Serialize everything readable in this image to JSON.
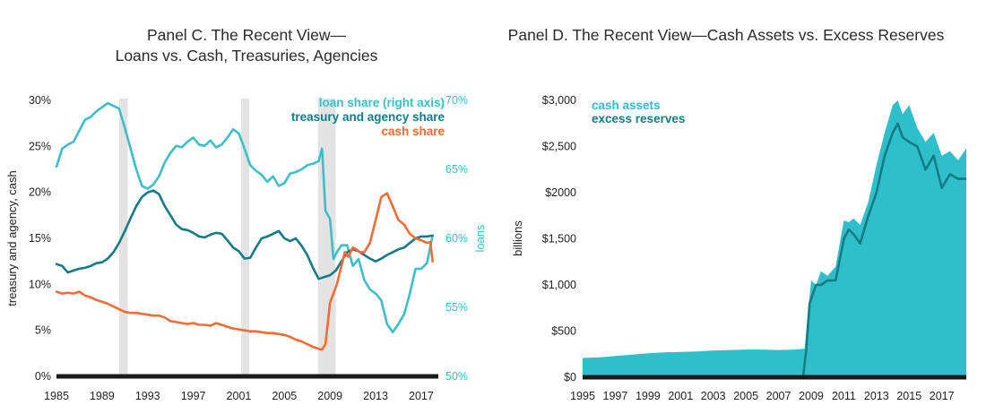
{
  "colors": {
    "loan": "#3dbfca",
    "treasury": "#137c86",
    "cash": "#f26c35",
    "cash_assets": "#2fbfcb",
    "excess_reserves": "#137c86",
    "recession": "#e3e3e3",
    "baseline": "#1a1a1a"
  },
  "chart_data": [
    {
      "type": "line",
      "title_lines": [
        "Panel C. The Recent View—",
        "Loans vs. Cash, Treasuries, Agencies"
      ],
      "ylabel_left": "treasury and agency, cash",
      "ylabel_right": "loans",
      "x_ticks": [
        "1985",
        "1989",
        "1993",
        "1997",
        "2001",
        "2005",
        "2009",
        "2013",
        "2017"
      ],
      "y_left_ticks": [
        "0%",
        "5%",
        "10%",
        "15%",
        "20%",
        "25%",
        "30%"
      ],
      "y_right_ticks": [
        "50%",
        "55%",
        "60%",
        "65%",
        "70%"
      ],
      "xlim": [
        1985,
        2018.5
      ],
      "ylim_left": [
        0,
        30
      ],
      "ylim_right": [
        50,
        70
      ],
      "recessions": [
        [
          1990.5,
          1991.25
        ],
        [
          2001.2,
          2001.9
        ],
        [
          2007.95,
          2009.5
        ]
      ],
      "legend": {
        "position": "top-right",
        "items": [
          "loan share (right axis)",
          "treasury and agency share",
          "cash share"
        ]
      },
      "series": [
        {
          "name": "loan share (right axis)",
          "axis": "right",
          "x": [
            1985.0,
            1985.5,
            1986.0,
            1986.5,
            1987.0,
            1987.5,
            1988.0,
            1988.5,
            1989.0,
            1989.5,
            1990.0,
            1990.5,
            1991.0,
            1991.5,
            1992.0,
            1992.5,
            1993.0,
            1993.5,
            1994.0,
            1994.5,
            1995.0,
            1995.5,
            1996.0,
            1996.5,
            1997.0,
            1997.5,
            1998.0,
            1998.5,
            1999.0,
            1999.5,
            2000.0,
            2000.5,
            2001.0,
            2001.5,
            2002.0,
            2002.5,
            2003.0,
            2003.5,
            2004.0,
            2004.5,
            2005.0,
            2005.5,
            2006.0,
            2006.5,
            2007.0,
            2007.5,
            2008.0,
            2008.3,
            2008.6,
            2009.0,
            2009.3,
            2009.6,
            2010.0,
            2010.5,
            2011.0,
            2011.5,
            2012.0,
            2012.5,
            2013.0,
            2013.5,
            2014.0,
            2014.5,
            2015.0,
            2015.5,
            2016.0,
            2016.5,
            2017.0,
            2017.5,
            2018.0
          ],
          "values": [
            65.2,
            66.5,
            66.8,
            67.0,
            67.8,
            68.6,
            68.8,
            69.2,
            69.5,
            69.8,
            69.6,
            69.4,
            68.0,
            66.5,
            65.0,
            63.8,
            63.6,
            63.9,
            64.5,
            65.5,
            66.2,
            66.7,
            66.6,
            67.0,
            67.3,
            66.8,
            66.7,
            67.1,
            66.6,
            66.8,
            67.3,
            67.9,
            67.6,
            66.5,
            65.3,
            64.9,
            64.6,
            64.1,
            64.5,
            63.8,
            64.0,
            64.7,
            64.8,
            65.0,
            65.3,
            65.4,
            65.6,
            66.5,
            62.0,
            61.4,
            58.5,
            59.0,
            59.5,
            59.5,
            58.0,
            58.5,
            57.0,
            56.3,
            56.0,
            55.5,
            53.8,
            53.2,
            53.8,
            54.5,
            56.0,
            57.8,
            57.8,
            58.2,
            60.2
          ]
        },
        {
          "name": "treasury and agency share",
          "axis": "left",
          "x": [
            1985.0,
            1985.5,
            1986.0,
            1986.5,
            1987.0,
            1987.5,
            1988.0,
            1988.5,
            1989.0,
            1989.5,
            1990.0,
            1990.5,
            1991.0,
            1991.5,
            1992.0,
            1992.5,
            1993.0,
            1993.5,
            1994.0,
            1994.5,
            1995.0,
            1995.5,
            1996.0,
            1996.5,
            1997.0,
            1997.5,
            1998.0,
            1998.5,
            1999.0,
            1999.5,
            2000.0,
            2000.5,
            2001.0,
            2001.5,
            2002.0,
            2002.5,
            2003.0,
            2003.5,
            2004.0,
            2004.5,
            2005.0,
            2005.5,
            2006.0,
            2006.5,
            2007.0,
            2007.5,
            2008.0,
            2008.5,
            2009.0,
            2009.5,
            2010.0,
            2010.5,
            2011.0,
            2011.5,
            2012.0,
            2012.5,
            2013.0,
            2013.5,
            2014.0,
            2014.5,
            2015.0,
            2015.5,
            2016.0,
            2016.5,
            2017.0,
            2017.5,
            2018.0
          ],
          "values": [
            12.2,
            12.0,
            11.3,
            11.5,
            11.7,
            11.8,
            12.0,
            12.3,
            12.4,
            12.8,
            13.5,
            14.5,
            15.8,
            17.2,
            18.5,
            19.5,
            20.0,
            20.2,
            19.8,
            18.5,
            17.5,
            16.5,
            16.0,
            15.9,
            15.6,
            15.2,
            15.1,
            15.4,
            15.6,
            15.5,
            14.8,
            14.0,
            13.6,
            12.8,
            12.9,
            14.0,
            15.0,
            15.2,
            15.5,
            15.8,
            15.0,
            14.7,
            15.0,
            14.2,
            13.2,
            11.8,
            10.6,
            10.8,
            11.0,
            11.5,
            12.5,
            13.5,
            13.8,
            13.6,
            13.2,
            12.8,
            12.5,
            12.8,
            13.2,
            13.5,
            13.8,
            14.0,
            14.5,
            15.0,
            15.2,
            15.2,
            15.3
          ]
        },
        {
          "name": "cash share",
          "axis": "left",
          "x": [
            1985.0,
            1985.5,
            1986.0,
            1986.5,
            1987.0,
            1987.5,
            1988.0,
            1988.5,
            1989.0,
            1989.5,
            1990.0,
            1990.5,
            1991.0,
            1991.5,
            1992.0,
            1992.5,
            1993.0,
            1993.5,
            1994.0,
            1994.5,
            1995.0,
            1995.5,
            1996.0,
            1996.5,
            1997.0,
            1997.5,
            1998.0,
            1998.5,
            1999.0,
            1999.5,
            2000.0,
            2000.5,
            2001.0,
            2001.5,
            2002.0,
            2002.5,
            2003.0,
            2003.5,
            2004.0,
            2004.5,
            2005.0,
            2005.5,
            2006.0,
            2006.5,
            2007.0,
            2007.5,
            2008.0,
            2008.3,
            2008.6,
            2009.0,
            2009.3,
            2009.6,
            2010.0,
            2010.3,
            2010.6,
            2011.0,
            2011.3,
            2011.6,
            2012.0,
            2012.5,
            2013.0,
            2013.5,
            2014.0,
            2014.5,
            2015.0,
            2015.5,
            2016.0,
            2016.5,
            2017.0,
            2017.5,
            2017.8,
            2018.0
          ],
          "values": [
            9.2,
            9.0,
            9.1,
            9.0,
            9.2,
            8.8,
            8.6,
            8.3,
            8.1,
            7.9,
            7.6,
            7.3,
            7.0,
            6.9,
            6.9,
            6.8,
            6.7,
            6.6,
            6.6,
            6.4,
            6.0,
            5.9,
            5.8,
            5.7,
            5.8,
            5.6,
            5.6,
            5.5,
            5.8,
            5.6,
            5.4,
            5.2,
            5.1,
            5.0,
            4.9,
            4.9,
            4.8,
            4.7,
            4.7,
            4.6,
            4.5,
            4.3,
            4.0,
            3.8,
            3.5,
            3.2,
            3.0,
            2.9,
            3.5,
            8.0,
            9.0,
            10.0,
            12.0,
            13.5,
            13.0,
            14.0,
            13.8,
            13.5,
            13.5,
            14.5,
            17.0,
            19.5,
            19.9,
            18.5,
            17.0,
            16.5,
            15.5,
            15.0,
            14.8,
            14.5,
            14.6,
            12.5
          ]
        }
      ]
    },
    {
      "type": "area",
      "title": "Panel D. The Recent View—Cash Assets vs. Excess Reserves",
      "ylabel": "billions",
      "x_ticks": [
        "1995",
        "1997",
        "1999",
        "2001",
        "2003",
        "2005",
        "2007",
        "2009",
        "2011",
        "2013",
        "2015",
        "2017"
      ],
      "y_ticks": [
        "$0",
        "$500",
        "$1,000",
        "$1,500",
        "$2000",
        "$2,500",
        "$3,000"
      ],
      "xlim": [
        1995,
        2018.5
      ],
      "ylim": [
        0,
        3000
      ],
      "legend": {
        "position": "top-left",
        "items": [
          "cash assets",
          "excess reserves"
        ]
      },
      "series": [
        {
          "name": "cash assets",
          "x": [
            1995.0,
            1996.0,
            1997.0,
            1998.0,
            1999.0,
            2000.0,
            2001.0,
            2002.0,
            2003.0,
            2004.0,
            2005.0,
            2006.0,
            2007.0,
            2008.0,
            2008.6,
            2008.8,
            2009.0,
            2009.3,
            2009.6,
            2010.0,
            2010.5,
            2011.0,
            2011.3,
            2011.6,
            2012.0,
            2012.5,
            2013.0,
            2013.5,
            2014.0,
            2014.3,
            2014.6,
            2015.0,
            2015.5,
            2016.0,
            2016.5,
            2017.0,
            2017.5,
            2018.0,
            2018.5
          ],
          "values": [
            210,
            215,
            230,
            245,
            260,
            270,
            275,
            280,
            290,
            295,
            300,
            300,
            295,
            300,
            310,
            700,
            1050,
            1000,
            1150,
            1100,
            1200,
            1700,
            1680,
            1720,
            1650,
            1900,
            2300,
            2650,
            2950,
            3000,
            2850,
            2950,
            2700,
            2550,
            2650,
            2400,
            2450,
            2350,
            2480
          ]
        },
        {
          "name": "excess reserves",
          "x": [
            1995.0,
            2008.5,
            2008.7,
            2008.9,
            2009.1,
            2009.3,
            2009.6,
            2010.0,
            2010.5,
            2011.0,
            2011.3,
            2011.6,
            2012.0,
            2012.5,
            2013.0,
            2013.5,
            2014.0,
            2014.3,
            2014.6,
            2015.0,
            2015.5,
            2016.0,
            2016.5,
            2017.0,
            2017.5,
            2018.0,
            2018.5
          ],
          "values": [
            0,
            0,
            300,
            800,
            900,
            1000,
            1000,
            1050,
            1050,
            1500,
            1600,
            1550,
            1450,
            1750,
            2000,
            2400,
            2650,
            2750,
            2600,
            2550,
            2500,
            2250,
            2400,
            2050,
            2200,
            2150,
            2150
          ]
        }
      ]
    }
  ]
}
